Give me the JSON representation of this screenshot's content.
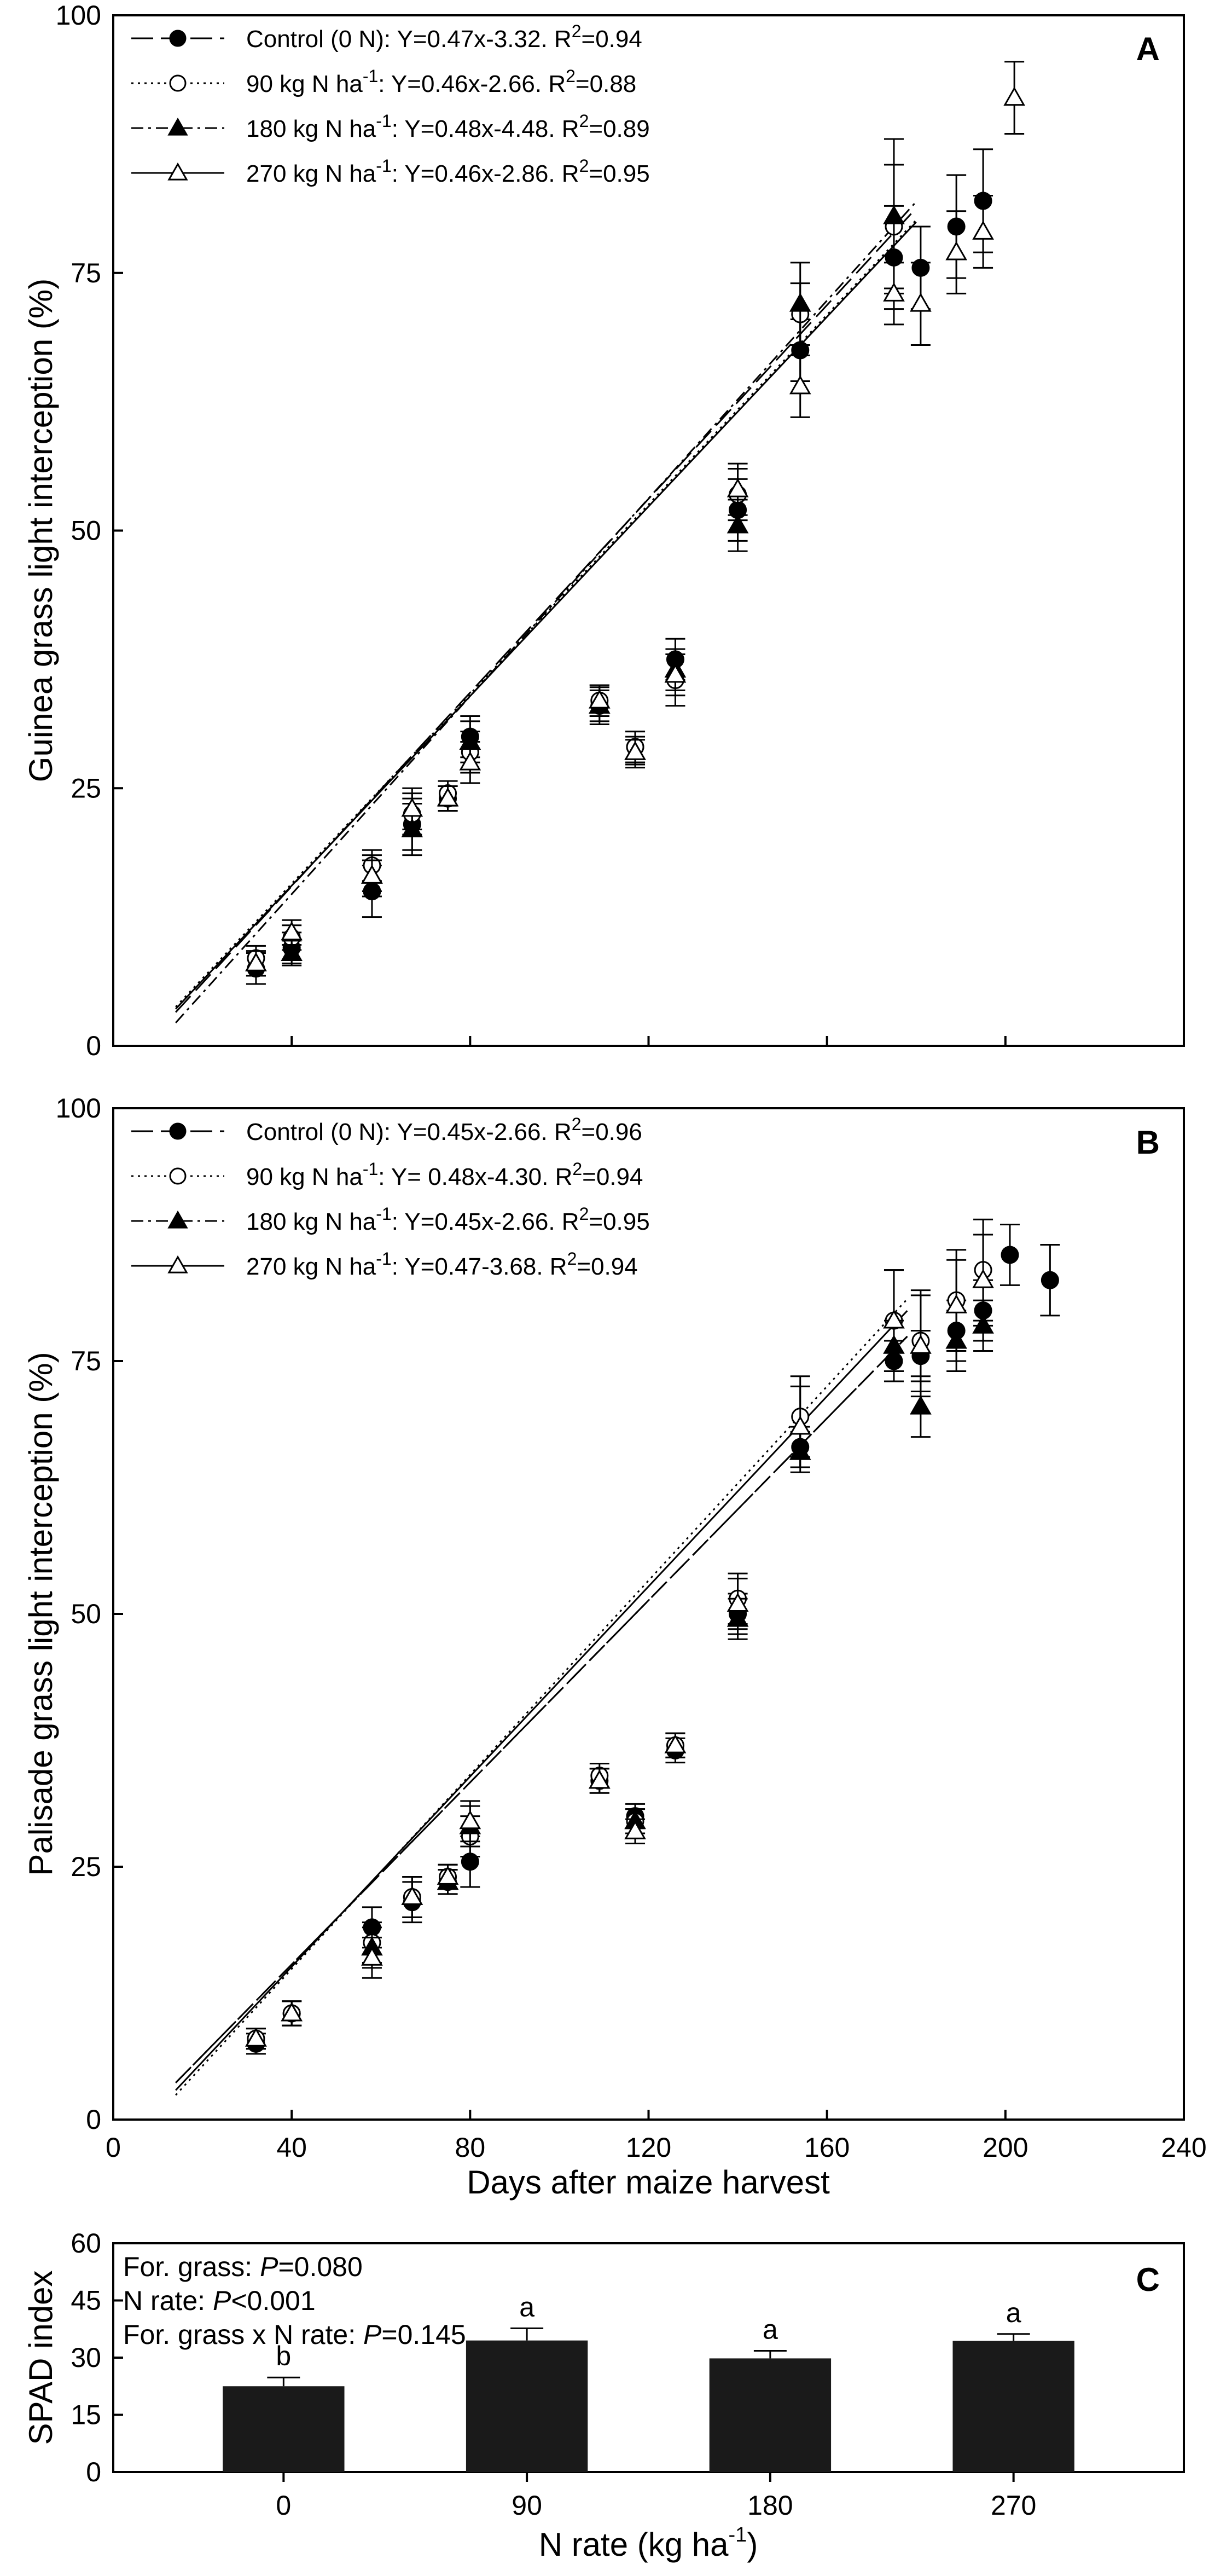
{
  "chart_data": [
    {
      "panel": "A",
      "type": "scatter",
      "panel_label": "A",
      "ylabel": "Guinea grass light interception (%)",
      "xlabel": "",
      "xlim": [
        0,
        240
      ],
      "ylim": [
        0,
        100
      ],
      "yticks": [
        "0",
        "25",
        "50",
        "75",
        "100"
      ],
      "xticks": [],
      "fit_range": [
        14,
        180
      ],
      "series": [
        {
          "name": "Control (0 N)",
          "label_main": "Control (0 N)",
          "label_sup": "",
          "label_rest": ": Y=0.47x-3.32. R",
          "r2_sup": "2",
          "r2_val": "=0.94",
          "marker": "filled-circle",
          "line": "long-dash",
          "slope": 0.47,
          "intercept": -3.32,
          "points": [
            [
              32,
              7.5
            ],
            [
              40,
              9.5
            ],
            [
              58,
              15
            ],
            [
              67,
              21.5
            ],
            [
              75,
              24
            ],
            [
              80,
              30
            ],
            [
              109,
              33
            ],
            [
              117,
              29
            ],
            [
              126,
              37.5
            ],
            [
              140,
              52
            ],
            [
              154,
              67.5
            ],
            [
              175,
              76.5
            ],
            [
              181,
              75.5
            ],
            [
              189,
              79.5
            ],
            [
              195,
              82
            ]
          ],
          "errors": [
            1.5,
            1.5,
            2.5,
            2.5,
            1.2,
            2,
            1.8,
            1.5,
            2,
            3,
            3,
            5,
            4,
            5,
            5
          ]
        },
        {
          "name": "90 kg N ha-1",
          "label_main": "90 kg N ha",
          "label_sup": "-1",
          "label_rest": ": Y=0.46x-2.66. R",
          "r2_sup": "2",
          "r2_val": "=0.88",
          "marker": "open-circle",
          "line": "dotted",
          "slope": 0.46,
          "intercept": -2.66,
          "points": [
            [
              32,
              8.5
            ],
            [
              40,
              10.5
            ],
            [
              58,
              17.5
            ],
            [
              67,
              22.5
            ],
            [
              75,
              24.5
            ],
            [
              80,
              28.5
            ],
            [
              109,
              33.5
            ],
            [
              117,
              29
            ],
            [
              126,
              35.5
            ],
            [
              140,
              53.5
            ],
            [
              154,
              71
            ],
            [
              175,
              79.5
            ]
          ],
          "errors": [
            1.2,
            1.2,
            1.5,
            2,
            1.2,
            2,
            1.5,
            1.5,
            2.5,
            2.5,
            3,
            6
          ]
        },
        {
          "name": "180 kg N ha-1",
          "label_main": "180 kg N ha",
          "label_sup": "-1",
          "label_rest": ": Y=0.48x-4.48. R",
          "r2_sup": "2",
          "r2_val": "=0.89",
          "marker": "filled-triangle",
          "line": "dash-dot",
          "slope": 0.48,
          "intercept": -4.48,
          "points": [
            [
              32,
              8
            ],
            [
              40,
              9
            ],
            [
              58,
              16.5
            ],
            [
              67,
              21
            ],
            [
              75,
              24
            ],
            [
              80,
              29.5
            ],
            [
              109,
              33
            ],
            [
              117,
              28.5
            ],
            [
              126,
              36.5
            ],
            [
              140,
              50.5
            ],
            [
              154,
              72
            ],
            [
              175,
              80.5
            ]
          ],
          "errors": [
            1.2,
            1.2,
            2,
            2.5,
            1.2,
            2,
            1.5,
            1.2,
            2,
            2.5,
            4,
            7.5
          ]
        },
        {
          "name": "270 kg N ha-1",
          "label_main": "270 kg N ha",
          "label_sup": "-1",
          "label_rest": ": Y=0.46x-2.86. R",
          "r2_sup": "2",
          "r2_val": "=0.95",
          "marker": "open-triangle",
          "line": "solid",
          "slope": 0.46,
          "intercept": -2.86,
          "points": [
            [
              32,
              8
            ],
            [
              40,
              11
            ],
            [
              58,
              16.5
            ],
            [
              67,
              23
            ],
            [
              75,
              24
            ],
            [
              80,
              27.5
            ],
            [
              109,
              33.5
            ],
            [
              117,
              28.5
            ],
            [
              126,
              36
            ],
            [
              140,
              54
            ],
            [
              154,
              64
            ],
            [
              175,
              73
            ],
            [
              181,
              72
            ],
            [
              189,
              77
            ],
            [
              195,
              79
            ],
            [
              202,
              92
            ]
          ],
          "errors": [
            1.2,
            1.2,
            1.5,
            2,
            1.2,
            2,
            1.5,
            1.5,
            2,
            2.5,
            3,
            3,
            4,
            4,
            3.5,
            3.5
          ]
        }
      ]
    },
    {
      "panel": "B",
      "type": "scatter",
      "panel_label": "B",
      "ylabel": "Palisade grass light interception (%)",
      "xlabel": "Days after maize harvest",
      "xlim": [
        0,
        240
      ],
      "ylim": [
        0,
        100
      ],
      "yticks": [
        "0",
        "25",
        "50",
        "75",
        "100"
      ],
      "xticks": [
        "0",
        "40",
        "80",
        "120",
        "160",
        "200",
        "240"
      ],
      "fit_range": [
        14,
        178
      ],
      "series": [
        {
          "name": "Control (0 N)",
          "label_main": "Control (0 N)",
          "label_sup": "",
          "label_rest": ": Y=0.45x-2.66. R",
          "r2_sup": "2",
          "r2_val": "=0.96",
          "marker": "filled-circle",
          "line": "long-dash",
          "slope": 0.45,
          "intercept": -2.66,
          "points": [
            [
              32,
              7.5
            ],
            [
              40,
              10.5
            ],
            [
              58,
              19
            ],
            [
              67,
              21.5
            ],
            [
              75,
              23.5
            ],
            [
              80,
              25.5
            ],
            [
              109,
              33.5
            ],
            [
              117,
              30
            ],
            [
              126,
              36.5
            ],
            [
              140,
              50
            ],
            [
              154,
              66.5
            ],
            [
              175,
              75
            ],
            [
              181,
              75.5
            ],
            [
              189,
              78
            ],
            [
              195,
              80
            ],
            [
              201,
              85.5
            ],
            [
              210,
              83
            ]
          ],
          "errors": [
            1,
            1.2,
            2,
            2,
            1.2,
            2.5,
            1.2,
            1.2,
            1.2,
            2,
            2,
            2,
            2.5,
            3,
            3,
            3,
            3.5
          ]
        },
        {
          "name": "90 kg N ha-1",
          "label_main": "90 kg N ha",
          "label_sup": "-1",
          "label_rest": ": Y= 0.48x-4.30. R",
          "r2_sup": "2",
          "r2_val": "=0.94",
          "marker": "open-circle",
          "line": "dotted",
          "slope": 0.48,
          "intercept": -4.3,
          "points": [
            [
              32,
              8
            ],
            [
              40,
              10.5
            ],
            [
              58,
              17.5
            ],
            [
              67,
              22
            ],
            [
              75,
              24
            ],
            [
              80,
              28
            ],
            [
              109,
              34
            ],
            [
              117,
              29.5
            ],
            [
              126,
              37
            ],
            [
              140,
              51.5
            ],
            [
              154,
              69.5
            ],
            [
              175,
              79
            ],
            [
              181,
              77
            ],
            [
              189,
              81
            ],
            [
              195,
              84
            ]
          ],
          "errors": [
            1,
            1.2,
            2,
            2,
            1.2,
            2,
            1.2,
            1.2,
            1.2,
            2.5,
            4,
            5,
            5,
            5,
            5
          ]
        },
        {
          "name": "180 kg N ha-1",
          "label_main": "180 kg N ha",
          "label_sup": "-1",
          "label_rest": ": Y=0.45x-2.66. R",
          "r2_sup": "2",
          "r2_val": "=0.95",
          "marker": "filled-triangle",
          "line": "dash-dot",
          "slope": 0.45,
          "intercept": -2.66,
          "points": [
            [
              32,
              8
            ],
            [
              40,
              10.5
            ],
            [
              58,
              17
            ],
            [
              67,
              22
            ],
            [
              75,
              23.5
            ],
            [
              80,
              29
            ],
            [
              109,
              33.5
            ],
            [
              117,
              29.5
            ],
            [
              126,
              37
            ],
            [
              140,
              49.5
            ],
            [
              154,
              66
            ],
            [
              175,
              76.5
            ],
            [
              181,
              70.5
            ],
            [
              189,
              77
            ],
            [
              195,
              78.5
            ]
          ],
          "errors": [
            1,
            1.2,
            2,
            2,
            1.2,
            2,
            1.2,
            1.2,
            1.2,
            2,
            2,
            2.5,
            3,
            3,
            2.5
          ]
        },
        {
          "name": "270 kg N ha-1",
          "label_main": "270 kg N ha",
          "label_sup": "-1",
          "label_rest": ": Y=0.47-3.68. R",
          "r2_sup": "2",
          "r2_val": "=0.94",
          "marker": "open-triangle",
          "line": "solid",
          "slope": 0.47,
          "intercept": -3.68,
          "points": [
            [
              32,
              8
            ],
            [
              40,
              10.5
            ],
            [
              58,
              16
            ],
            [
              67,
              22
            ],
            [
              75,
              24
            ],
            [
              80,
              29.5
            ],
            [
              109,
              33.5
            ],
            [
              117,
              28.5
            ],
            [
              126,
              37
            ],
            [
              140,
              51
            ],
            [
              154,
              68.5
            ],
            [
              175,
              79
            ],
            [
              181,
              76.5
            ],
            [
              189,
              80.5
            ],
            [
              195,
              83
            ]
          ],
          "errors": [
            1,
            1.2,
            2,
            2,
            1.2,
            2,
            1.2,
            1.2,
            1.2,
            2.5,
            4,
            5,
            5,
            4.5,
            4.5
          ]
        }
      ]
    },
    {
      "panel": "C",
      "type": "bar",
      "panel_label": "C",
      "ylabel": "SPAD index",
      "xlabel_main": "N rate (kg ha",
      "xlabel_sup": "-1",
      "xlabel_end": ")",
      "categories": [
        "0",
        "90",
        "180",
        "270"
      ],
      "values": [
        22.5,
        34.5,
        29.8,
        34.4
      ],
      "errors": [
        2.3,
        3.2,
        2.0,
        1.8
      ],
      "letters": [
        "b",
        "a",
        "a",
        "a"
      ],
      "ylim": [
        0,
        60
      ],
      "yticks": [
        "0",
        "15",
        "30",
        "45",
        "60"
      ],
      "bar_color": "#1a1a1a",
      "annotations": [
        {
          "prefix": "For. grass: ",
          "italic": "P",
          "suffix": "=0.080"
        },
        {
          "prefix": "N rate: ",
          "italic": "P",
          "suffix": "<0.001"
        },
        {
          "prefix": "For. grass x N rate: ",
          "italic": "P",
          "suffix": "=0.145"
        }
      ]
    }
  ]
}
